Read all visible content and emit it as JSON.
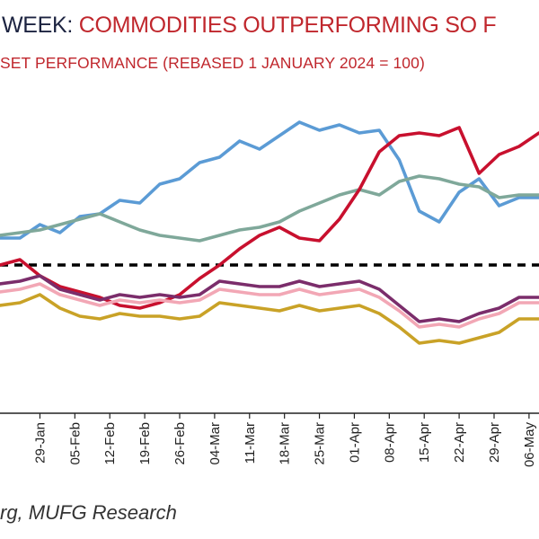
{
  "header": {
    "title_lead": "WEEK: ",
    "title_main": "COMMODITIES OUTPERFORMING SO F",
    "subtitle": "SET PERFORMANCE (REBASED 1 JANUARY 2024 = 100)"
  },
  "source": "rg, MUFG Research",
  "chart_data": {
    "type": "line",
    "title": "COMMODITIES OUTPERFORMING SO F",
    "subtitle": "SET PERFORMANCE (REBASED 1 JANUARY 2024 = 100)",
    "xlabel": "",
    "ylabel": "",
    "categories": [
      "29-Jan",
      "05-Feb",
      "12-Feb",
      "19-Feb",
      "26-Feb",
      "04-Mar",
      "11-Mar",
      "18-Mar",
      "25-Mar",
      "01-Apr",
      "08-Apr",
      "15-Apr",
      "22-Apr",
      "29-Apr",
      "06-May"
    ],
    "x_days": [
      28,
      35,
      42,
      49,
      56,
      63,
      70,
      77,
      84,
      91,
      98,
      105,
      112,
      119,
      126
    ],
    "xlim": [
      20,
      128
    ],
    "ylim": [
      94.5,
      106.5
    ],
    "reference": {
      "value": 100,
      "style": "dashed",
      "color": "#000000"
    },
    "grid": false,
    "legend": "none",
    "series": [
      {
        "color": "#5b9bd5",
        "x": [
          20,
          24,
          28,
          32,
          36,
          40,
          44,
          48,
          52,
          56,
          60,
          64,
          68,
          72,
          76,
          80,
          84,
          88,
          92,
          96,
          100,
          104,
          108,
          112,
          116,
          120,
          124,
          128
        ],
        "y": [
          101.0,
          101.0,
          101.5,
          101.2,
          101.8,
          101.9,
          102.4,
          102.3,
          103.0,
          103.2,
          103.8,
          104.0,
          104.6,
          104.3,
          104.8,
          105.3,
          105.0,
          105.2,
          104.9,
          105.0,
          103.9,
          102.0,
          101.6,
          102.7,
          103.2,
          102.2,
          102.5,
          102.5
        ]
      },
      {
        "color": "#7fa89a",
        "x": [
          20,
          24,
          28,
          32,
          36,
          40,
          44,
          48,
          52,
          56,
          60,
          64,
          68,
          72,
          76,
          80,
          84,
          88,
          92,
          96,
          100,
          104,
          108,
          112,
          116,
          120,
          124,
          128
        ],
        "y": [
          101.1,
          101.2,
          101.3,
          101.5,
          101.7,
          101.9,
          101.6,
          101.3,
          101.1,
          101.0,
          100.9,
          101.1,
          101.3,
          101.4,
          101.6,
          102.0,
          102.3,
          102.6,
          102.8,
          102.6,
          103.1,
          103.3,
          103.2,
          103.0,
          102.9,
          102.5,
          102.6,
          102.6
        ]
      },
      {
        "color": "#c8102e",
        "x": [
          20,
          24,
          28,
          32,
          36,
          40,
          44,
          48,
          52,
          56,
          60,
          64,
          68,
          72,
          76,
          80,
          84,
          88,
          92,
          96,
          100,
          104,
          108,
          112,
          116,
          120,
          124,
          128
        ],
        "y": [
          100.0,
          100.2,
          99.6,
          99.2,
          99.0,
          98.8,
          98.5,
          98.4,
          98.6,
          98.9,
          99.5,
          100.0,
          100.6,
          101.1,
          101.4,
          101.0,
          100.9,
          101.7,
          102.8,
          104.2,
          104.8,
          104.9,
          104.8,
          105.1,
          103.4,
          104.1,
          104.4,
          104.9
        ]
      },
      {
        "color": "#7b2d6b",
        "x": [
          20,
          24,
          28,
          32,
          36,
          40,
          44,
          48,
          52,
          56,
          60,
          64,
          68,
          72,
          76,
          80,
          84,
          88,
          92,
          96,
          100,
          104,
          108,
          112,
          116,
          120,
          124,
          128
        ],
        "y": [
          99.3,
          99.4,
          99.6,
          99.1,
          98.9,
          98.7,
          98.9,
          98.8,
          98.9,
          98.8,
          98.9,
          99.4,
          99.3,
          99.2,
          99.2,
          99.4,
          99.2,
          99.3,
          99.4,
          99.1,
          98.5,
          97.9,
          98.0,
          97.9,
          98.2,
          98.4,
          98.8,
          98.8
        ]
      },
      {
        "color": "#f2a7b5",
        "x": [
          20,
          24,
          28,
          32,
          36,
          40,
          44,
          48,
          52,
          56,
          60,
          64,
          68,
          72,
          76,
          80,
          84,
          88,
          92,
          96,
          100,
          104,
          108,
          112,
          116,
          120,
          124,
          128
        ],
        "y": [
          99.0,
          99.1,
          99.3,
          98.9,
          98.7,
          98.5,
          98.7,
          98.6,
          98.7,
          98.6,
          98.7,
          99.1,
          99.0,
          98.9,
          98.9,
          99.1,
          98.9,
          99.0,
          99.1,
          98.8,
          98.3,
          97.7,
          97.8,
          97.7,
          98.0,
          98.2,
          98.6,
          98.6
        ]
      },
      {
        "color": "#c9a227",
        "x": [
          20,
          24,
          28,
          32,
          36,
          40,
          44,
          48,
          52,
          56,
          60,
          64,
          68,
          72,
          76,
          80,
          84,
          88,
          92,
          96,
          100,
          104,
          108,
          112,
          116,
          120,
          124,
          128
        ],
        "y": [
          98.5,
          98.6,
          98.9,
          98.4,
          98.1,
          98.0,
          98.2,
          98.1,
          98.1,
          98.0,
          98.1,
          98.6,
          98.5,
          98.4,
          98.3,
          98.5,
          98.3,
          98.4,
          98.5,
          98.2,
          97.7,
          97.1,
          97.2,
          97.1,
          97.3,
          97.5,
          98.0,
          98.0
        ]
      }
    ]
  }
}
